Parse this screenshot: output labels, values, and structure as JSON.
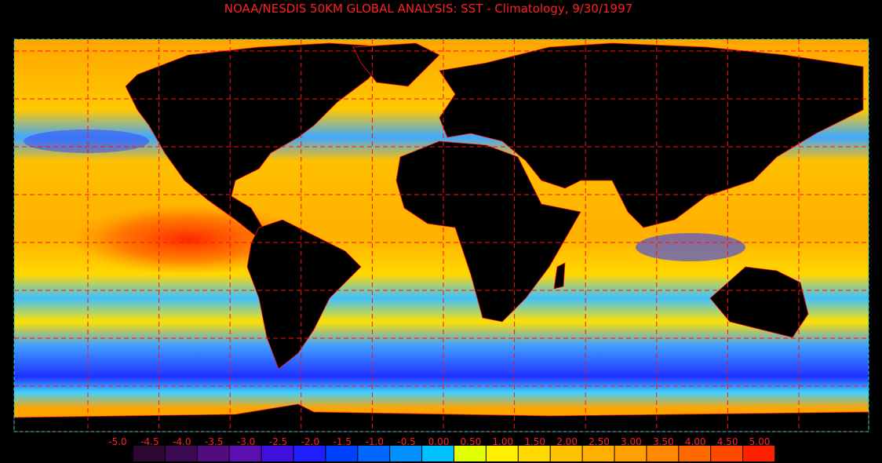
{
  "title": "NOAA/NESDIS 50KM GLOBAL ANALYSIS: SST - Climatology, 9/30/1997",
  "colorbar": {
    "ticks": [
      {
        "value": -5,
        "label": "-5.0"
      },
      {
        "value": -4.5,
        "label": "-4.5"
      },
      {
        "value": -4,
        "label": "-4.0"
      },
      {
        "value": -3.5,
        "label": "-3.5"
      },
      {
        "value": -3,
        "label": "-3.0"
      },
      {
        "value": -2.5,
        "label": "-2.5"
      },
      {
        "value": -2,
        "label": "-2.0"
      },
      {
        "value": -1.5,
        "label": "-1.5"
      },
      {
        "value": -1,
        "label": "-1.0"
      },
      {
        "value": -0.5,
        "label": "-0.5"
      },
      {
        "value": 0,
        "label": "0.00"
      },
      {
        "value": 0.5,
        "label": "0.50"
      },
      {
        "value": 1,
        "label": "1.00"
      },
      {
        "value": 1.5,
        "label": "1.50"
      },
      {
        "value": 2,
        "label": "2.00"
      },
      {
        "value": 2.5,
        "label": "2.50"
      },
      {
        "value": 3,
        "label": "3.00"
      },
      {
        "value": 3.5,
        "label": "3.50"
      },
      {
        "value": 4,
        "label": "4.00"
      },
      {
        "value": 4.5,
        "label": "4.50"
      },
      {
        "value": 5,
        "label": "5.00"
      }
    ],
    "colors": [
      "#2a0830",
      "#3c0a50",
      "#520c80",
      "#5a10b0",
      "#4010e0",
      "#2020ff",
      "#0040ff",
      "#0068ff",
      "#0090ff",
      "#00c0ff",
      "#e0ff00",
      "#fff000",
      "#ffd800",
      "#ffc000",
      "#ffb000",
      "#ffa000",
      "#ff8800",
      "#ff6800",
      "#ff4800",
      "#ff2000"
    ]
  }
}
